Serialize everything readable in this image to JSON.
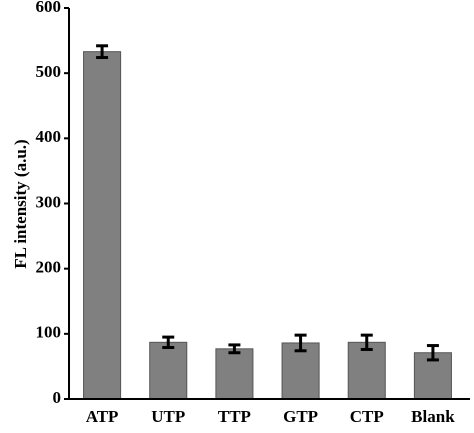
{
  "chart_data": {
    "type": "bar",
    "y_label": "FL intensity (a.u.)",
    "categories": [
      "ATP",
      "UTP",
      "TTP",
      "GTP",
      "CTP",
      "Blank"
    ],
    "values": [
      533,
      87,
      77,
      86,
      87,
      71
    ],
    "errors": [
      9,
      8,
      6,
      12,
      11,
      11
    ],
    "color": "#808080",
    "ylim": [
      0,
      600
    ],
    "yticks": [
      0,
      100,
      200,
      300,
      400,
      500,
      600
    ],
    "grid": false
  }
}
